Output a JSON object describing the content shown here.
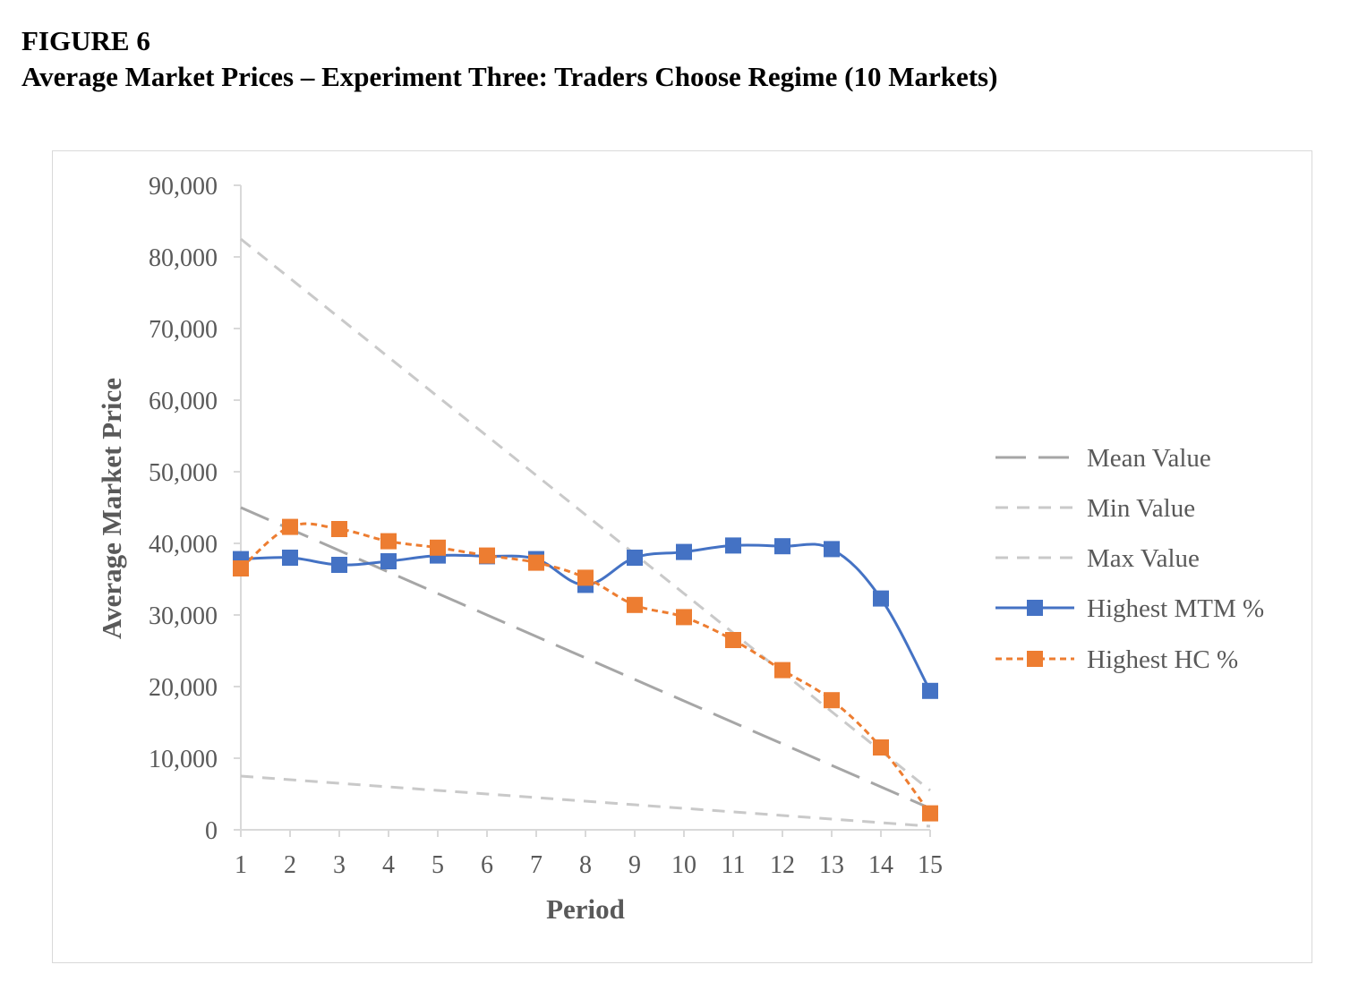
{
  "figure": {
    "label": "FIGURE 6",
    "title": "Average Market Prices – Experiment Three: Traders Choose Regime (10 Markets)"
  },
  "chart_data": {
    "type": "line",
    "xlabel": "Period",
    "ylabel": "Average Market Price",
    "x": [
      1,
      2,
      3,
      4,
      5,
      6,
      7,
      8,
      9,
      10,
      11,
      12,
      13,
      14,
      15
    ],
    "ylim": [
      0,
      90000
    ],
    "yticks": [
      0,
      10000,
      20000,
      30000,
      40000,
      50000,
      60000,
      70000,
      80000,
      90000
    ],
    "ytick_labels": [
      "0",
      "10,000",
      "20,000",
      "30,000",
      "40,000",
      "50,000",
      "60,000",
      "70,000",
      "80,000",
      "90,000"
    ],
    "xtick_labels": [
      "1",
      "2",
      "3",
      "4",
      "5",
      "6",
      "7",
      "8",
      "9",
      "10",
      "11",
      "12",
      "13",
      "14",
      "15"
    ],
    "grid": false,
    "legend_position": "right",
    "series": [
      {
        "name": "Mean Value",
        "style": "long-dash",
        "color": "#a6a6a6",
        "marker": "none",
        "values": [
          45000,
          42000,
          39000,
          36000,
          33000,
          30000,
          27000,
          24000,
          21000,
          18000,
          15000,
          12000,
          9000,
          6000,
          3000
        ]
      },
      {
        "name": "Min Value",
        "style": "dash",
        "color": "#c9c9c9",
        "marker": "none",
        "values": [
          7500,
          7000,
          6500,
          6000,
          5500,
          5000,
          4500,
          4000,
          3500,
          3000,
          2500,
          2000,
          1500,
          1000,
          500
        ]
      },
      {
        "name": "Max Value",
        "style": "dash",
        "color": "#c9c9c9",
        "marker": "none",
        "values": [
          82500,
          77000,
          71500,
          66000,
          60500,
          55000,
          49500,
          44000,
          38500,
          33000,
          27500,
          22000,
          16500,
          11000,
          5500
        ]
      },
      {
        "name": "Highest MTM %",
        "style": "solid",
        "color": "#4472c4",
        "marker": "square",
        "values": [
          37800,
          38000,
          37000,
          37500,
          38300,
          38200,
          37800,
          34200,
          38000,
          38800,
          39700,
          39600,
          39200,
          32300,
          19400
        ]
      },
      {
        "name": "Highest HC %",
        "style": "dotted",
        "color": "#ed7d31",
        "marker": "square",
        "values": [
          36500,
          42300,
          42000,
          40300,
          39400,
          38300,
          37300,
          35200,
          31400,
          29700,
          26500,
          22300,
          18100,
          11500,
          2300
        ]
      }
    ]
  }
}
